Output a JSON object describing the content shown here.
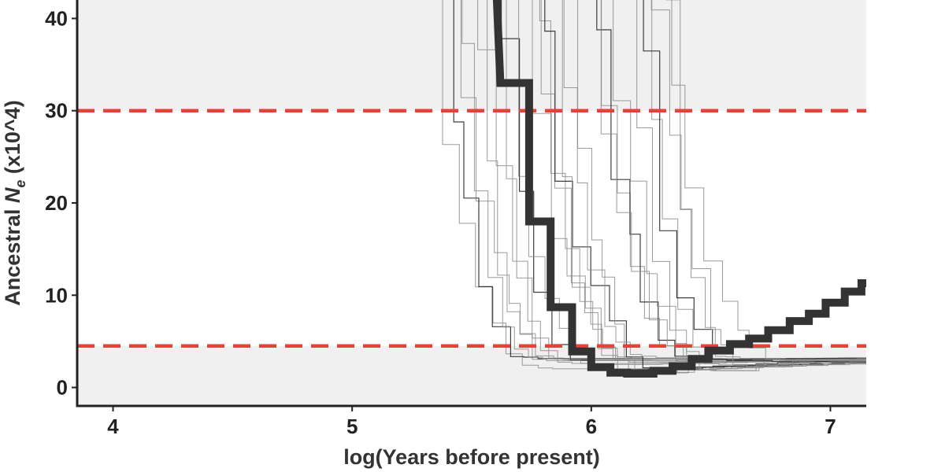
{
  "chart_data": {
    "type": "line",
    "title": "",
    "xlabel": "log(Years before present)",
    "ylabel": {
      "prefix": "Ancestral ",
      "italic": "N",
      "subscript": "e",
      "suffix": " (x10^4)"
    },
    "xlim": [
      3.85,
      7.15
    ],
    "ylim": [
      -2,
      42
    ],
    "x_ticks": [
      4,
      5,
      6,
      7
    ],
    "x_tick_labels": [
      "4",
      "5",
      "6",
      "7"
    ],
    "y_ticks": [
      0,
      10,
      20,
      30,
      40
    ],
    "y_tick_labels": [
      "0",
      "10",
      "20",
      "30",
      "40"
    ],
    "grid": false,
    "legend": "none",
    "shaded_bands": [
      {
        "y_from": -2,
        "y_to": 4.5,
        "color": "#f0f0f0"
      },
      {
        "y_from": 30,
        "y_to": 42,
        "color": "#f0f0f0"
      }
    ],
    "reference_lines": [
      {
        "y": 30,
        "color": "#e8413a",
        "style": "dashed"
      },
      {
        "y": 4.5,
        "color": "#e8413a",
        "style": "dashed"
      }
    ],
    "main_series": {
      "color": "#333333",
      "points": [
        [
          5.6,
          45
        ],
        [
          5.62,
          33
        ],
        [
          5.74,
          33
        ],
        [
          5.74,
          18
        ],
        [
          5.83,
          18
        ],
        [
          5.83,
          8.7
        ],
        [
          5.92,
          8.7
        ],
        [
          5.92,
          3.9
        ],
        [
          6.0,
          3.9
        ],
        [
          6.0,
          2.2
        ],
        [
          6.08,
          2.2
        ],
        [
          6.08,
          1.6
        ],
        [
          6.15,
          1.6
        ],
        [
          6.15,
          1.5
        ],
        [
          6.26,
          1.5
        ],
        [
          6.26,
          1.8
        ],
        [
          6.34,
          1.8
        ],
        [
          6.34,
          2.3
        ],
        [
          6.42,
          2.3
        ],
        [
          6.42,
          3.1
        ],
        [
          6.49,
          3.1
        ],
        [
          6.49,
          4.0
        ],
        [
          6.58,
          4.0
        ],
        [
          6.58,
          4.7
        ],
        [
          6.66,
          4.7
        ],
        [
          6.66,
          5.3
        ],
        [
          6.74,
          5.3
        ],
        [
          6.74,
          6.2
        ],
        [
          6.83,
          6.2
        ],
        [
          6.83,
          7.2
        ],
        [
          6.91,
          7.2
        ],
        [
          6.91,
          8.0
        ],
        [
          6.98,
          8.0
        ],
        [
          6.98,
          9.2
        ],
        [
          7.06,
          9.2
        ],
        [
          7.06,
          10.4
        ],
        [
          7.13,
          10.4
        ],
        [
          7.13,
          11.3
        ],
        [
          7.2,
          11.3
        ]
      ]
    },
    "bootstrap_series": {
      "color": "#8a8a8a",
      "count": 26,
      "collapse_x_min": 5.35,
      "collapse_x_max": 6.33,
      "y_start_min": 22,
      "y_start_max": 45,
      "y_floor_min": 1.6,
      "y_floor_max": 3.4,
      "tail_y_end_min": 2.6,
      "tail_y_end_max": 3.3
    }
  }
}
